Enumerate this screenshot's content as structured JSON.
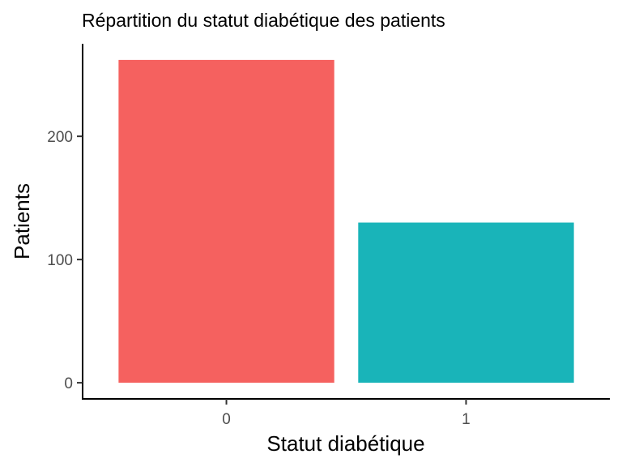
{
  "chart_data": {
    "type": "bar",
    "title": "Répartition du statut diabétique des patients",
    "xlabel": "Statut diabétique",
    "ylabel": "Patients",
    "categories": [
      "0",
      "1"
    ],
    "values": [
      262,
      130
    ],
    "colors": [
      "#F8766D",
      "#00BFC4"
    ],
    "bar_colors": [
      "#f5615f",
      "#19b4b9"
    ],
    "yticks": [
      0,
      100,
      200
    ],
    "ytick_labels": [
      "0",
      "100",
      "200"
    ],
    "ylim": [
      -13.1,
      275.1
    ],
    "grid": false,
    "legend": "none"
  }
}
